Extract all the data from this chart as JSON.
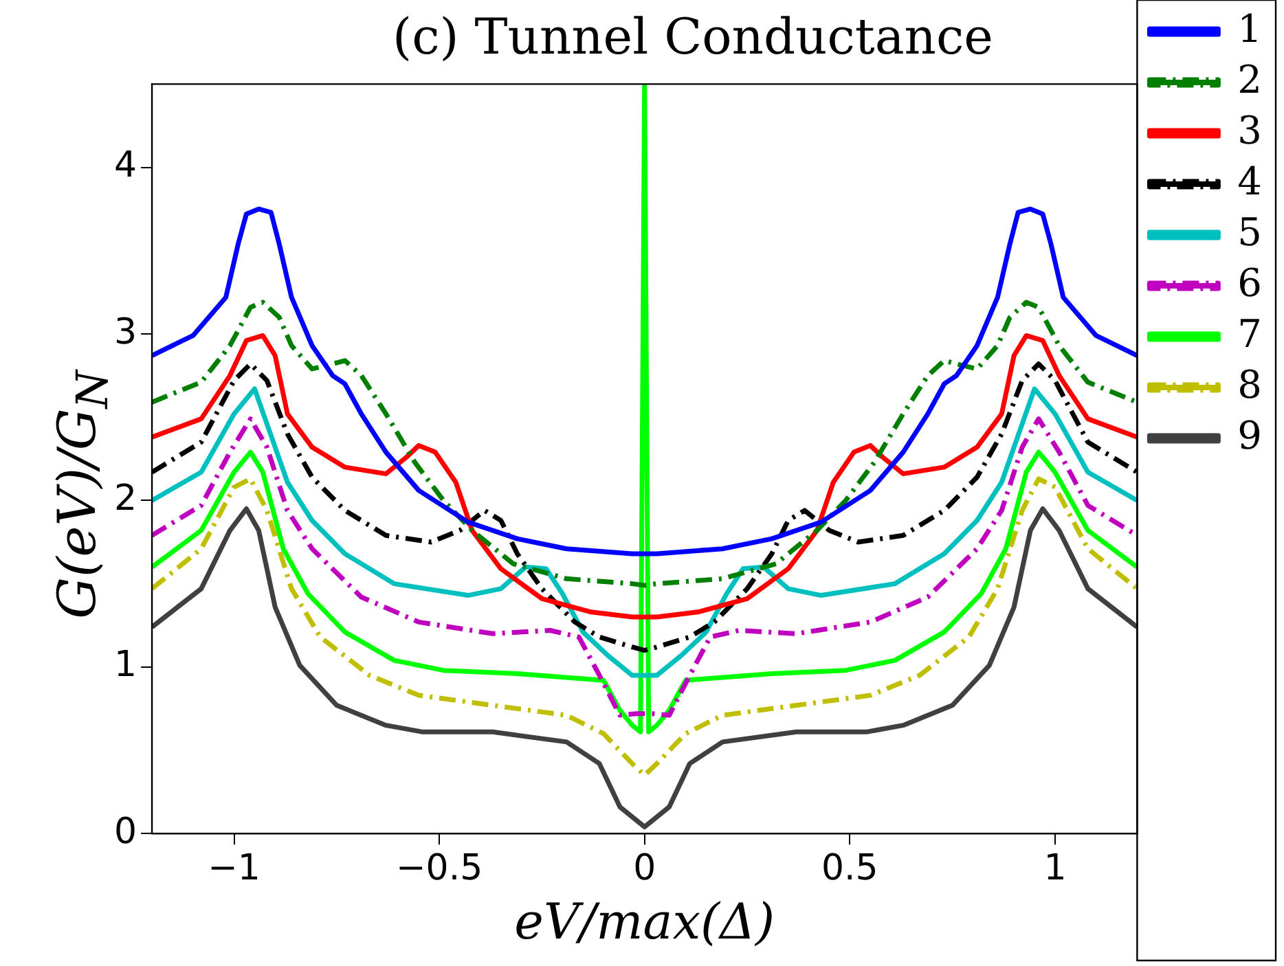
{
  "chart_data": {
    "type": "line",
    "title": "(c) Tunnel Conductance",
    "xlabel": "eV/max(Δ)",
    "ylabel": "G(eV)/G$_{N}$",
    "xlim": [
      -1.2,
      1.2
    ],
    "ylim": [
      0,
      4.5
    ],
    "xticks": [
      {
        "value": -1,
        "label": "−1"
      },
      {
        "value": -0.5,
        "label": "−0.5"
      },
      0,
      0.5,
      1
    ],
    "yticks": [
      0,
      1,
      2,
      3,
      4
    ],
    "grid": false,
    "legend": "top right",
    "series": [
      {
        "name": "1",
        "color": "#0000ff",
        "line_style": "solid",
        "x": [
          -1.2,
          -1.1,
          -1.02,
          -0.99,
          -0.97,
          -0.94,
          -0.91,
          -0.89,
          -0.86,
          -0.81,
          -0.76,
          -0.73,
          -0.69,
          -0.63,
          -0.55,
          -0.43,
          -0.31,
          -0.19,
          -0.03,
          0,
          0.03,
          0.19,
          0.31,
          0.43,
          0.55,
          0.63,
          0.69,
          0.73,
          0.76,
          0.81,
          0.86,
          0.89,
          0.91,
          0.94,
          0.97,
          0.99,
          1.02,
          1.1,
          1.2
        ],
        "values": [
          2.87,
          2.99,
          3.22,
          3.54,
          3.72,
          3.75,
          3.73,
          3.54,
          3.22,
          2.93,
          2.75,
          2.7,
          2.52,
          2.29,
          2.06,
          1.87,
          1.77,
          1.71,
          1.68,
          1.68,
          1.68,
          1.71,
          1.77,
          1.87,
          2.06,
          2.29,
          2.52,
          2.7,
          2.75,
          2.93,
          3.22,
          3.54,
          3.73,
          3.75,
          3.72,
          3.54,
          3.22,
          2.99,
          2.87
        ]
      },
      {
        "name": "2",
        "color": "#007f00",
        "line_style": "dashed",
        "x": [
          -1.2,
          -1.08,
          -1.01,
          -0.96,
          -0.93,
          -0.89,
          -0.86,
          -0.81,
          -0.76,
          -0.73,
          -0.69,
          -0.63,
          -0.56,
          -0.49,
          -0.42,
          -0.32,
          -0.19,
          -0.03,
          0,
          0.03,
          0.19,
          0.32,
          0.42,
          0.49,
          0.56,
          0.63,
          0.69,
          0.73,
          0.76,
          0.81,
          0.86,
          0.89,
          0.93,
          0.96,
          1.01,
          1.08,
          1.2
        ],
        "values": [
          2.59,
          2.71,
          2.93,
          3.16,
          3.19,
          3.1,
          2.93,
          2.79,
          2.82,
          2.84,
          2.75,
          2.52,
          2.23,
          2.0,
          1.82,
          1.62,
          1.53,
          1.5,
          1.49,
          1.5,
          1.53,
          1.62,
          1.82,
          2.0,
          2.23,
          2.52,
          2.75,
          2.84,
          2.82,
          2.79,
          2.93,
          3.1,
          3.19,
          3.16,
          2.93,
          2.71,
          2.59
        ]
      },
      {
        "name": "3",
        "color": "#ff0000",
        "line_style": "solid",
        "x": [
          -1.2,
          -1.08,
          -1.01,
          -0.97,
          -0.93,
          -0.9,
          -0.87,
          -0.81,
          -0.73,
          -0.63,
          -0.58,
          -0.55,
          -0.51,
          -0.46,
          -0.42,
          -0.35,
          -0.25,
          -0.13,
          -0.03,
          0,
          0.03,
          0.13,
          0.25,
          0.35,
          0.42,
          0.46,
          0.51,
          0.55,
          0.58,
          0.63,
          0.73,
          0.81,
          0.87,
          0.9,
          0.93,
          0.97,
          1.01,
          1.08,
          1.2
        ],
        "values": [
          2.38,
          2.49,
          2.75,
          2.96,
          2.99,
          2.87,
          2.52,
          2.32,
          2.2,
          2.16,
          2.26,
          2.33,
          2.29,
          2.11,
          1.82,
          1.59,
          1.41,
          1.33,
          1.3,
          1.3,
          1.3,
          1.33,
          1.41,
          1.59,
          1.82,
          2.11,
          2.29,
          2.33,
          2.26,
          2.16,
          2.2,
          2.32,
          2.52,
          2.87,
          2.99,
          2.96,
          2.75,
          2.49,
          2.38
        ]
      },
      {
        "name": "4",
        "color": "#000000",
        "line_style": "dashed",
        "x": [
          -1.2,
          -1.08,
          -1.0,
          -0.96,
          -0.92,
          -0.87,
          -0.81,
          -0.73,
          -0.63,
          -0.52,
          -0.45,
          -0.39,
          -0.35,
          -0.31,
          -0.25,
          -0.17,
          -0.11,
          -0.03,
          0,
          0.03,
          0.11,
          0.17,
          0.25,
          0.31,
          0.35,
          0.39,
          0.45,
          0.52,
          0.63,
          0.73,
          0.81,
          0.87,
          0.92,
          0.96,
          1.0,
          1.08,
          1.2
        ],
        "values": [
          2.17,
          2.35,
          2.72,
          2.82,
          2.72,
          2.4,
          2.14,
          1.94,
          1.79,
          1.75,
          1.82,
          1.94,
          1.88,
          1.68,
          1.47,
          1.27,
          1.18,
          1.12,
          1.1,
          1.12,
          1.18,
          1.27,
          1.47,
          1.68,
          1.88,
          1.94,
          1.82,
          1.75,
          1.79,
          1.94,
          2.14,
          2.4,
          2.72,
          2.82,
          2.72,
          2.35,
          2.17
        ]
      },
      {
        "name": "5",
        "color": "#00bfbf",
        "line_style": "solid",
        "x": [
          -1.2,
          -1.08,
          -1.0,
          -0.95,
          -0.92,
          -0.87,
          -0.81,
          -0.73,
          -0.61,
          -0.43,
          -0.35,
          -0.29,
          -0.24,
          -0.2,
          -0.15,
          -0.09,
          -0.03,
          0,
          0.03,
          0.09,
          0.15,
          0.2,
          0.24,
          0.29,
          0.35,
          0.43,
          0.61,
          0.73,
          0.81,
          0.87,
          0.92,
          0.95,
          1.0,
          1.08,
          1.2
        ],
        "values": [
          2.0,
          2.17,
          2.52,
          2.67,
          2.46,
          2.11,
          1.88,
          1.68,
          1.5,
          1.43,
          1.47,
          1.6,
          1.59,
          1.44,
          1.21,
          1.07,
          0.95,
          0.95,
          0.95,
          1.07,
          1.21,
          1.44,
          1.59,
          1.6,
          1.47,
          1.43,
          1.5,
          1.68,
          1.88,
          2.11,
          2.46,
          2.67,
          2.52,
          2.17,
          2.0
        ]
      },
      {
        "name": "6",
        "color": "#bf00bf",
        "line_style": "dashed",
        "x": [
          -1.2,
          -1.08,
          -1.01,
          -0.96,
          -0.92,
          -0.87,
          -0.81,
          -0.69,
          -0.55,
          -0.37,
          -0.23,
          -0.16,
          -0.11,
          -0.06,
          -0.02,
          0,
          0.02,
          0.06,
          0.11,
          0.16,
          0.23,
          0.37,
          0.55,
          0.69,
          0.81,
          0.87,
          0.92,
          0.96,
          1.01,
          1.08,
          1.2
        ],
        "values": [
          1.79,
          1.97,
          2.29,
          2.49,
          2.32,
          1.94,
          1.71,
          1.42,
          1.27,
          1.2,
          1.22,
          1.18,
          0.95,
          0.71,
          0.72,
          0.72,
          0.72,
          0.71,
          0.95,
          1.18,
          1.22,
          1.2,
          1.27,
          1.42,
          1.71,
          1.94,
          2.32,
          2.49,
          2.29,
          1.97,
          1.79
        ]
      },
      {
        "name": "7",
        "color": "#00ff00",
        "line_style": "solid",
        "x": [
          -1.2,
          -1.08,
          -1.0,
          -0.96,
          -0.93,
          -0.88,
          -0.82,
          -0.73,
          -0.61,
          -0.49,
          -0.31,
          -0.1,
          -0.06,
          -0.03,
          -0.01,
          0,
          0.01,
          0.03,
          0.06,
          0.1,
          0.31,
          0.49,
          0.61,
          0.73,
          0.82,
          0.88,
          0.93,
          0.96,
          1.0,
          1.08,
          1.2
        ],
        "values": [
          1.6,
          1.82,
          2.17,
          2.29,
          2.17,
          1.71,
          1.44,
          1.21,
          1.04,
          0.98,
          0.96,
          0.92,
          0.74,
          0.65,
          0.61,
          4.5,
          0.61,
          0.65,
          0.74,
          0.92,
          0.96,
          0.98,
          1.04,
          1.21,
          1.44,
          1.71,
          2.17,
          2.29,
          2.17,
          1.82,
          1.6
        ]
      },
      {
        "name": "8",
        "color": "#bfbf00",
        "line_style": "dashed",
        "x": [
          -1.2,
          -1.08,
          -1.0,
          -0.96,
          -0.92,
          -0.86,
          -0.79,
          -0.67,
          -0.55,
          -0.37,
          -0.19,
          -0.1,
          -0.03,
          0,
          0.03,
          0.1,
          0.19,
          0.37,
          0.55,
          0.67,
          0.79,
          0.86,
          0.92,
          0.96,
          1.0,
          1.08,
          1.2
        ],
        "values": [
          1.47,
          1.71,
          2.08,
          2.13,
          1.94,
          1.47,
          1.18,
          0.95,
          0.83,
          0.77,
          0.71,
          0.6,
          0.42,
          0.35,
          0.42,
          0.6,
          0.71,
          0.77,
          0.83,
          0.95,
          1.18,
          1.47,
          1.94,
          2.13,
          2.08,
          1.71,
          1.47
        ]
      },
      {
        "name": "9",
        "color": "#404040",
        "line_style": "solid",
        "x": [
          -1.2,
          -1.08,
          -1.01,
          -0.97,
          -0.94,
          -0.9,
          -0.84,
          -0.75,
          -0.63,
          -0.54,
          -0.37,
          -0.19,
          -0.11,
          -0.06,
          0,
          0.06,
          0.11,
          0.19,
          0.37,
          0.54,
          0.63,
          0.75,
          0.84,
          0.9,
          0.94,
          0.97,
          1.01,
          1.08,
          1.2
        ],
        "values": [
          1.24,
          1.47,
          1.82,
          1.95,
          1.82,
          1.36,
          1.01,
          0.77,
          0.65,
          0.61,
          0.61,
          0.55,
          0.42,
          0.16,
          0.04,
          0.16,
          0.42,
          0.55,
          0.61,
          0.61,
          0.65,
          0.77,
          1.01,
          1.36,
          1.82,
          1.95,
          1.82,
          1.47,
          1.24
        ]
      }
    ]
  }
}
